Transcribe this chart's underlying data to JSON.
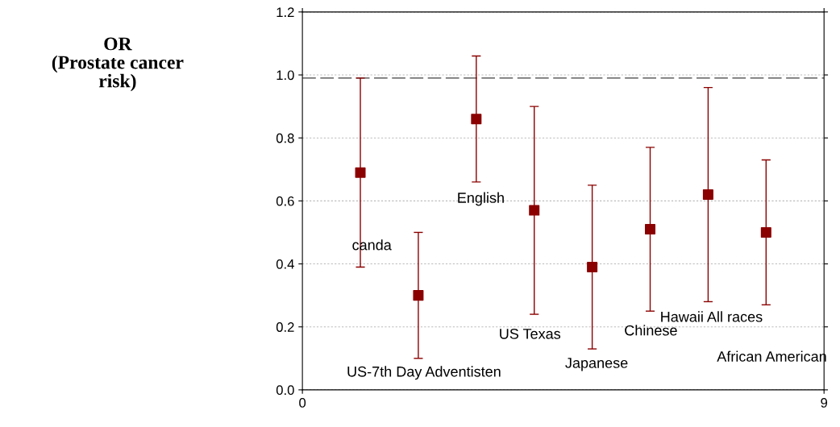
{
  "chart_data": {
    "type": "scatter",
    "ylabel": "OR\n(Prostate cancer\nrisk)",
    "x": [
      1,
      2,
      3,
      4,
      5,
      6,
      7,
      8
    ],
    "series": [
      {
        "color": "#8b0000",
        "values": [
          0.69,
          0.3,
          0.86,
          0.57,
          0.39,
          0.51,
          0.62,
          0.5
        ],
        "errors": [
          [
            0.39,
            0.99
          ],
          [
            0.1,
            0.5
          ],
          [
            0.66,
            1.06
          ],
          [
            0.24,
            0.9
          ],
          [
            0.13,
            0.65
          ],
          [
            0.25,
            0.77
          ],
          [
            0.28,
            0.96
          ],
          [
            0.27,
            0.73
          ]
        ]
      }
    ],
    "marker": "square",
    "xlim": [
      0,
      9
    ],
    "xticks": [
      0,
      9
    ],
    "ylim": [
      0,
      1.2
    ],
    "yticks": [
      {
        "value": 0,
        "label": "0.0"
      },
      {
        "value": 0.2,
        "label": "0.2"
      },
      {
        "value": 0.4,
        "label": "0.4"
      },
      {
        "value": 0.6,
        "label": "0.6"
      },
      {
        "value": 0.8,
        "label": "0.8"
      },
      {
        "value": 1.0,
        "label": "1.0"
      },
      {
        "value": 1.2,
        "label": "1.2"
      }
    ],
    "grid": "y",
    "ref_lines": [
      {
        "axis": "y",
        "value": 0.99,
        "color": "#404040",
        "line_style": "dashed"
      }
    ],
    "annotations": [
      "canda",
      "US-7th Day Adventisten",
      "English",
      "US Texas",
      "Japanese",
      "Chinese",
      "Hawaii All races",
      "African American"
    ]
  }
}
